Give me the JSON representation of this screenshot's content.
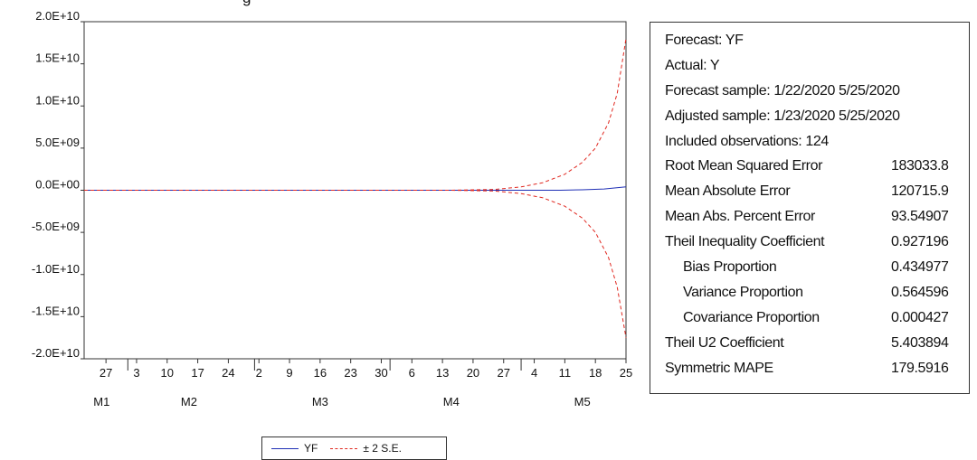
{
  "title": "g",
  "chart_data": {
    "type": "line",
    "ylim": [
      -20000000000,
      20000000000
    ],
    "yticks": [
      {
        "value": 20000000000,
        "label": "2.0E+10"
      },
      {
        "value": 15000000000,
        "label": "1.5E+10"
      },
      {
        "value": 10000000000,
        "label": "1.0E+10"
      },
      {
        "value": 5000000000,
        "label": "5.0E+09"
      },
      {
        "value": 0,
        "label": "0.0E+00"
      },
      {
        "value": -5000000000,
        "label": "-5.0E+09"
      },
      {
        "value": -10000000000,
        "label": "-1.0E+10"
      },
      {
        "value": -15000000000,
        "label": "-1.5E+10"
      },
      {
        "value": -20000000000,
        "label": "-2.0E+10"
      }
    ],
    "xlim": [
      "2020-01-22",
      "2020-05-25"
    ],
    "xticks": [
      {
        "date": "2020-01-27",
        "label": "27"
      },
      {
        "date": "2020-02-03",
        "label": "3"
      },
      {
        "date": "2020-02-10",
        "label": "10"
      },
      {
        "date": "2020-02-17",
        "label": "17"
      },
      {
        "date": "2020-02-24",
        "label": "24"
      },
      {
        "date": "2020-03-02",
        "label": "2"
      },
      {
        "date": "2020-03-09",
        "label": "9"
      },
      {
        "date": "2020-03-16",
        "label": "16"
      },
      {
        "date": "2020-03-23",
        "label": "23"
      },
      {
        "date": "2020-03-30",
        "label": "30"
      },
      {
        "date": "2020-04-06",
        "label": "6"
      },
      {
        "date": "2020-04-13",
        "label": "13"
      },
      {
        "date": "2020-04-20",
        "label": "20"
      },
      {
        "date": "2020-04-27",
        "label": "27"
      },
      {
        "date": "2020-05-04",
        "label": "4"
      },
      {
        "date": "2020-05-11",
        "label": "11"
      },
      {
        "date": "2020-05-18",
        "label": "18"
      },
      {
        "date": "2020-05-25",
        "label": "25"
      }
    ],
    "month_labels": [
      {
        "date": "2020-01-26",
        "label": "M1"
      },
      {
        "date": "2020-02-15",
        "label": "M2"
      },
      {
        "date": "2020-03-16",
        "label": "M3"
      },
      {
        "date": "2020-04-15",
        "label": "M4"
      },
      {
        "date": "2020-05-15",
        "label": "M5"
      }
    ],
    "month_separators": [
      "2020-02-01",
      "2020-03-01",
      "2020-04-01",
      "2020-05-01"
    ],
    "series": [
      {
        "name": "YF",
        "color": "#1f2fb5",
        "dash": false,
        "x": [
          "2020-01-22",
          "2020-04-20",
          "2020-05-01",
          "2020-05-10",
          "2020-05-15",
          "2020-05-20",
          "2020-05-25"
        ],
        "y": [
          0,
          0,
          0,
          0,
          50000000,
          150000000,
          400000000
        ]
      },
      {
        "name": "± 2 S.E.",
        "color": "#e0271f",
        "dash": true,
        "x": [
          "2020-01-22",
          "2020-04-15",
          "2020-04-25",
          "2020-05-01",
          "2020-05-06",
          "2020-05-11",
          "2020-05-15",
          "2020-05-18",
          "2020-05-21",
          "2020-05-23",
          "2020-05-25"
        ],
        "y": [
          0,
          0,
          100000000,
          400000000,
          900000000,
          1900000000,
          3300000000,
          5000000000,
          8000000000,
          11500000000,
          18000000000
        ]
      },
      {
        "name": "± 2 S.E.",
        "color": "#e0271f",
        "dash": true,
        "x": [
          "2020-01-22",
          "2020-04-15",
          "2020-04-25",
          "2020-05-01",
          "2020-05-06",
          "2020-05-11",
          "2020-05-15",
          "2020-05-18",
          "2020-05-21",
          "2020-05-23",
          "2020-05-25"
        ],
        "y": [
          0,
          0,
          -100000000,
          -400000000,
          -900000000,
          -1900000000,
          -3300000000,
          -5000000000,
          -8000000000,
          -11500000000,
          -17500000000
        ]
      }
    ],
    "legend_position": "bottom"
  },
  "stats": {
    "forecast": "Forecast: YF",
    "actual": "Actual: Y",
    "forecast_sample": "Forecast sample: 1/22/2020 5/25/2020",
    "adjusted_sample": "Adjusted sample: 1/23/2020 5/25/2020",
    "included_obs": "Included observations: 124",
    "rows": [
      {
        "label": "Root Mean Squared Error",
        "value": "183033.8",
        "sub": false
      },
      {
        "label": "Mean Absolute Error",
        "value": "120715.9",
        "sub": false
      },
      {
        "label": "Mean Abs. Percent Error",
        "value": "93.54907",
        "sub": false
      },
      {
        "label": "Theil Inequality Coefficient",
        "value": "0.927196",
        "sub": false
      },
      {
        "label": "Bias Proportion",
        "value": "0.434977",
        "sub": true
      },
      {
        "label": "Variance Proportion",
        "value": "0.564596",
        "sub": true
      },
      {
        "label": "Covariance Proportion",
        "value": "0.000427",
        "sub": true
      },
      {
        "label": "Theil U2 Coefficient",
        "value": "5.403894",
        "sub": false
      },
      {
        "label": "Symmetric MAPE",
        "value": "179.5916",
        "sub": false
      }
    ]
  },
  "legend": {
    "yf_label": "YF",
    "se_label": "± 2 S.E."
  },
  "colors": {
    "yf": "#1f2fb5",
    "se": "#e0271f"
  }
}
